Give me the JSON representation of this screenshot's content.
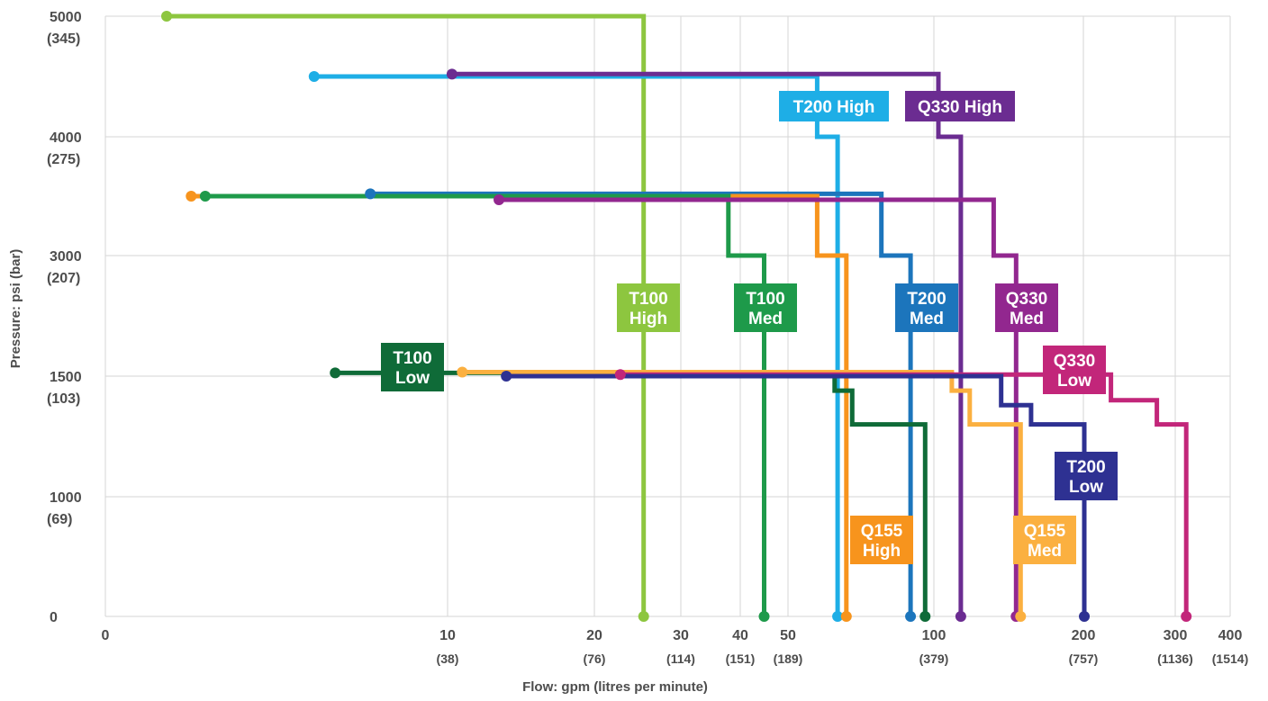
{
  "chart_data": {
    "type": "line",
    "title": "",
    "xlabel": "Flow: gpm (litres per minute)",
    "ylabel": "Pressure: psi (bar)",
    "x_scale": "nonuniform-log",
    "y_scale": "nonuniform",
    "x_ticks": [
      {
        "value": 0,
        "label": "0",
        "sublabel": ""
      },
      {
        "value": 10,
        "label": "10",
        "sublabel": "(38)"
      },
      {
        "value": 20,
        "label": "20",
        "sublabel": "(76)"
      },
      {
        "value": 30,
        "label": "30",
        "sublabel": "(114)"
      },
      {
        "value": 40,
        "label": "40",
        "sublabel": "(151)"
      },
      {
        "value": 50,
        "label": "50",
        "sublabel": "(189)"
      },
      {
        "value": 100,
        "label": "100",
        "sublabel": "(379)"
      },
      {
        "value": 200,
        "label": "200",
        "sublabel": "(757)"
      },
      {
        "value": 300,
        "label": "300",
        "sublabel": "(1136)"
      },
      {
        "value": 400,
        "label": "400",
        "sublabel": "(1514)"
      }
    ],
    "y_ticks": [
      {
        "value": 0,
        "label": "0",
        "sublabel": ""
      },
      {
        "value": 1000,
        "label": "1000",
        "sublabel": "(69)"
      },
      {
        "value": 1500,
        "label": "1500",
        "sublabel": "(103)"
      },
      {
        "value": 3000,
        "label": "3000",
        "sublabel": "(207)"
      },
      {
        "value": 4000,
        "label": "4000",
        "sublabel": "(275)"
      },
      {
        "value": 5000,
        "label": "5000",
        "sublabel": "(345)"
      }
    ],
    "grid": true,
    "series": [
      {
        "name": "T100 High",
        "color": "#8dc63f",
        "label": "T100|High",
        "points": [
          [
            2,
            5000
          ],
          [
            25.7,
            5000
          ],
          [
            25.7,
            0
          ]
        ]
      },
      {
        "name": "T200 High",
        "color": "#1eaee6",
        "label": "T200 High",
        "points": [
          [
            6.2,
            4500
          ],
          [
            60,
            4500
          ],
          [
            60,
            4000
          ],
          [
            67,
            4000
          ],
          [
            67,
            0
          ]
        ]
      },
      {
        "name": "Q330 High",
        "color": "#6b2c91",
        "label": "Q330 High",
        "points": [
          [
            10.3,
            4520
          ],
          [
            103,
            4520
          ],
          [
            103,
            4000
          ],
          [
            118,
            4000
          ],
          [
            118,
            0
          ]
        ]
      },
      {
        "name": "T200 Med",
        "color": "#1c75bc",
        "label": "T200|Med",
        "points": [
          [
            7.8,
            3520
          ],
          [
            82,
            3520
          ],
          [
            82,
            3000
          ],
          [
            92,
            3000
          ],
          [
            92,
            0
          ]
        ]
      },
      {
        "name": "Q155 High",
        "color": "#f7941d",
        "label": "Q155|High",
        "points": [
          [
            2.7,
            3500
          ],
          [
            60,
            3500
          ],
          [
            60,
            3000
          ],
          [
            70,
            3000
          ],
          [
            70,
            0
          ]
        ]
      },
      {
        "name": "T100 Med",
        "color": "#1e9a4a",
        "label": "T100|Med",
        "points": [
          [
            3.1,
            3500
          ],
          [
            38,
            3500
          ],
          [
            38,
            3000
          ],
          [
            45,
            3000
          ],
          [
            45,
            0
          ]
        ]
      },
      {
        "name": "Q330 Med",
        "color": "#92278f",
        "label": "Q330|Med",
        "points": [
          [
            13.5,
            3470
          ],
          [
            140,
            3470
          ],
          [
            140,
            3000
          ],
          [
            155,
            3000
          ],
          [
            155,
            0
          ]
        ]
      },
      {
        "name": "T100 Low",
        "color": "#0f6b38",
        "label": "T100|Low",
        "points": [
          [
            6.8,
            1540
          ],
          [
            66,
            1540
          ],
          [
            66,
            1440
          ],
          [
            72,
            1440
          ],
          [
            72,
            1300
          ],
          [
            97,
            1300
          ],
          [
            97,
            0
          ]
        ]
      },
      {
        "name": "Q155 Med",
        "color": "#fbb040",
        "label": "Q155|Med",
        "points": [
          [
            11,
            1550
          ],
          [
            112,
            1550
          ],
          [
            112,
            1440
          ],
          [
            124,
            1440
          ],
          [
            124,
            1300
          ],
          [
            158,
            1300
          ],
          [
            158,
            0
          ]
        ]
      },
      {
        "name": "Q330 Low",
        "color": "#c2267a",
        "label": "Q330|Low",
        "points": [
          [
            23,
            1520
          ],
          [
            230,
            1520
          ],
          [
            230,
            1400
          ],
          [
            280,
            1400
          ],
          [
            280,
            1300
          ],
          [
            320,
            1300
          ],
          [
            320,
            0
          ]
        ]
      },
      {
        "name": "T200 Low",
        "color": "#2e3192",
        "label": "T200|Low",
        "points": [
          [
            14,
            1500
          ],
          [
            145,
            1500
          ],
          [
            145,
            1380
          ],
          [
            165,
            1380
          ],
          [
            165,
            1300
          ],
          [
            201,
            1300
          ],
          [
            201,
            0
          ]
        ]
      }
    ]
  }
}
